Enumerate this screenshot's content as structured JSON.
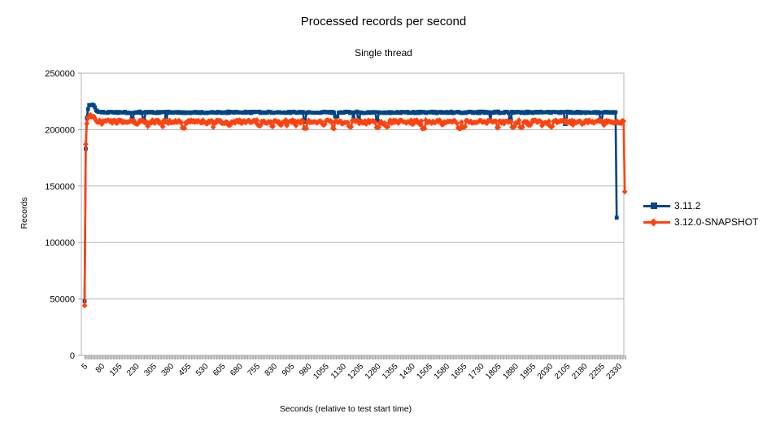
{
  "chart_data": {
    "type": "line",
    "title": "Processed records per second",
    "subtitle": "Single thread",
    "xlabel": "Seconds (relative to test start time)",
    "ylabel": "Records",
    "grid": "horizontal",
    "legend_position": "right",
    "background": "#ffffff",
    "colors": {
      "grid": "#b3b3b3",
      "axis": "#9e9e9e",
      "text": "#000000"
    },
    "x_axis": {
      "min": 5,
      "max": 2360,
      "step": 5,
      "minor_tick_interval": 5,
      "labeled_ticks": [
        5,
        80,
        155,
        230,
        305,
        380,
        455,
        530,
        605,
        680,
        755,
        830,
        905,
        980,
        1055,
        1130,
        1205,
        1280,
        1355,
        1430,
        1505,
        1580,
        1655,
        1730,
        1805,
        1880,
        1955,
        2030,
        2105,
        2180,
        2255,
        2330
      ]
    },
    "y_axis": {
      "min": 0,
      "max": 250000,
      "tick_step": 50000,
      "ticks": [
        0,
        50000,
        100000,
        150000,
        200000,
        250000
      ]
    },
    "series": [
      {
        "name": "3.11.2",
        "color": "#004586",
        "marker": "square",
        "anchors": [
          [
            5,
            48000
          ],
          [
            10,
            183000
          ],
          [
            15,
            210000
          ],
          [
            20,
            219000
          ],
          [
            25,
            222000
          ],
          [
            45,
            222000
          ],
          [
            55,
            217000
          ],
          [
            65,
            215500
          ],
          [
            2310,
            215500
          ],
          [
            2315,
            215500
          ],
          [
            2320,
            122000
          ]
        ],
        "exact_until": 10,
        "exact_from": 2315,
        "noise_model": {
          "seed": 7,
          "amplitude": 1400,
          "dip_probability": 0.02,
          "dip_depth": [
            4000,
            11000
          ],
          "dip_length": [
            1,
            3
          ]
        },
        "summary": "steady ~215500 rec/s, initial point 48000, warm-up peak ~222000, final point drops to 122000 at t=2320"
      },
      {
        "name": "3.12.0-SNAPSHOT",
        "color": "#ff420e",
        "marker": "diamond",
        "anchors": [
          [
            5,
            44000
          ],
          [
            10,
            187000
          ],
          [
            15,
            206000
          ],
          [
            25,
            213500
          ],
          [
            40,
            212500
          ],
          [
            60,
            207500
          ],
          [
            2345,
            207500
          ],
          [
            2350,
            207500
          ],
          [
            2355,
            145000
          ]
        ],
        "exact_until": 10,
        "exact_from": 2350,
        "noise_model": {
          "seed": 13,
          "amplitude": 3000,
          "dip_probability": 0.1,
          "dip_depth": [
            2000,
            6500
          ],
          "dip_length": [
            1,
            3
          ]
        },
        "summary": "steady ~207000 rec/s oscillating ~202000-211000, initial point 44000, final point drops to 145000 at t=2355"
      }
    ]
  }
}
